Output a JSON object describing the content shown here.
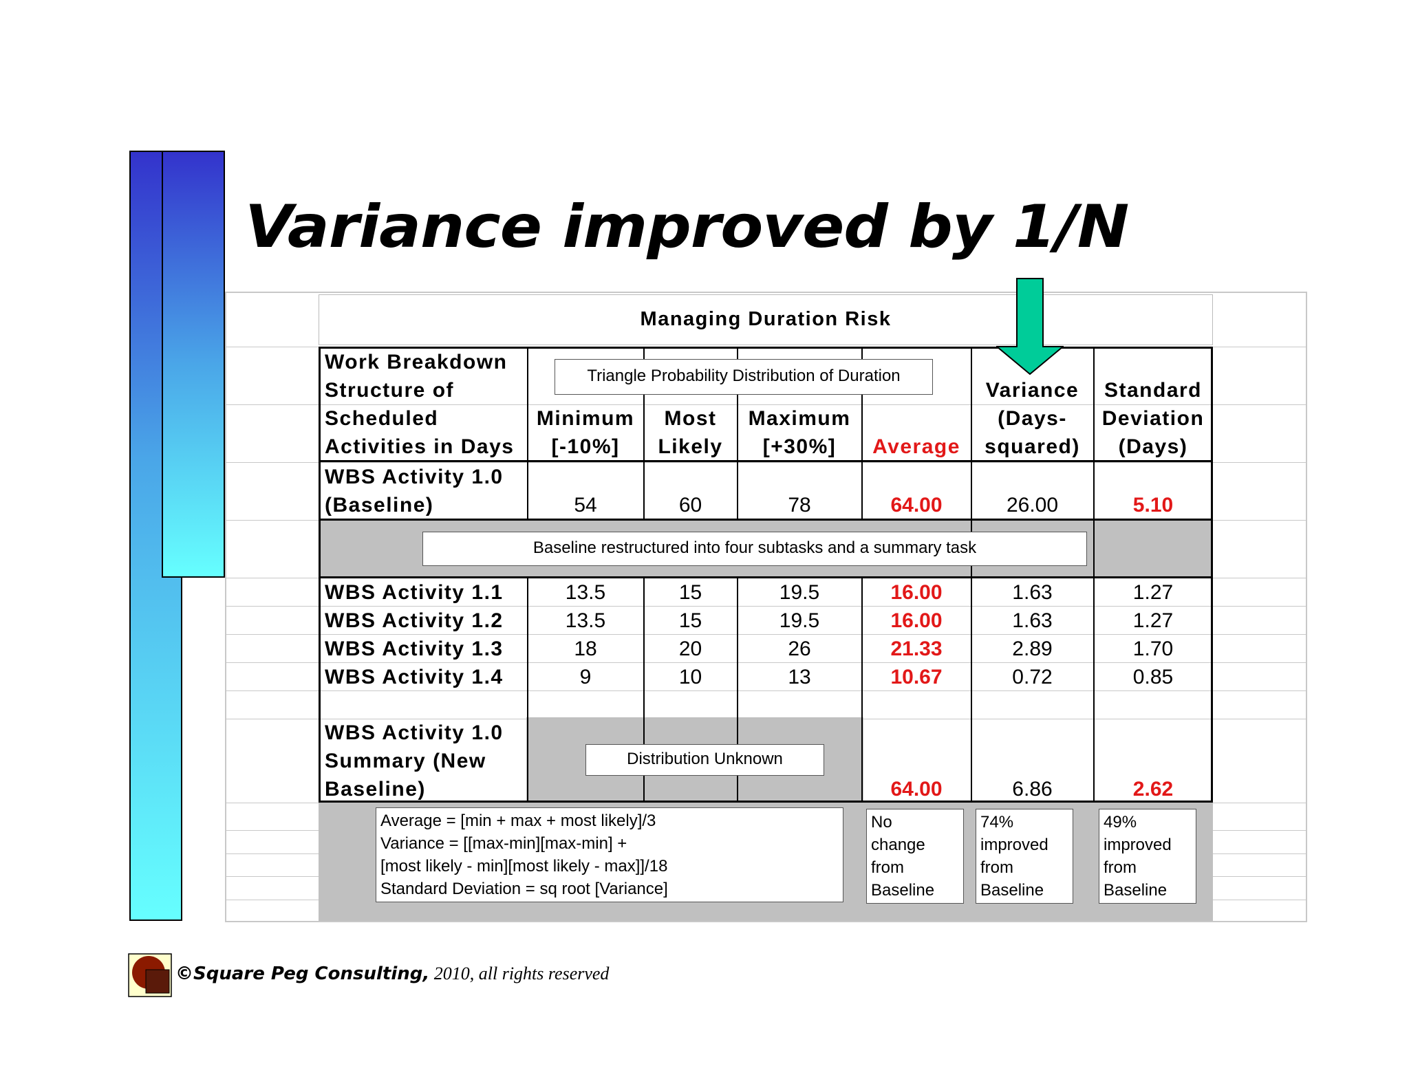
{
  "title": "Variance improved by 1/N",
  "table": {
    "caption": "Managing Duration Risk",
    "triangle_label": "Triangle Probability Distribution of Duration",
    "headers": {
      "wbs": [
        "Work Breakdown",
        "Structure of",
        "Scheduled",
        "Activities in Days"
      ],
      "min": [
        "Minimum",
        "[-10%]"
      ],
      "likely": [
        "Most",
        "Likely"
      ],
      "max": [
        "Maximum",
        "[+30%]"
      ],
      "avg": "Average",
      "var": [
        "Variance",
        "(Days-",
        "squared)"
      ],
      "sd": [
        "Standard",
        "Deviation",
        "(Days)"
      ]
    },
    "baseline": {
      "name": [
        "WBS Activity 1.0",
        "(Baseline)"
      ],
      "min": "54",
      "likely": "60",
      "max": "78",
      "avg": "64.00",
      "var": "26.00",
      "sd": "5.10"
    },
    "restructured_note": "Baseline restructured into four subtasks and a summary task",
    "rows": [
      {
        "name": "WBS Activity 1.1",
        "min": "13.5",
        "likely": "15",
        "max": "19.5",
        "avg": "16.00",
        "var": "1.63",
        "sd": "1.27"
      },
      {
        "name": "WBS Activity 1.2",
        "min": "13.5",
        "likely": "15",
        "max": "19.5",
        "avg": "16.00",
        "var": "1.63",
        "sd": "1.27"
      },
      {
        "name": "WBS Activity 1.3",
        "min": "18",
        "likely": "20",
        "max": "26",
        "avg": "21.33",
        "var": "2.89",
        "sd": "1.70"
      },
      {
        "name": "WBS Activity 1.4",
        "min": "9",
        "likely": "10",
        "max": "13",
        "avg": "10.67",
        "var": "0.72",
        "sd": "0.85"
      }
    ],
    "summary": {
      "name": [
        "WBS Activity 1.0",
        "Summary (New",
        "Baseline)"
      ],
      "distribution_note": "Distribution Unknown",
      "avg": "64.00",
      "var": "6.86",
      "sd": "2.62"
    },
    "formulas": [
      "Average = [min + max + most likely]/3",
      "Variance = [[max-min][max-min] +",
      "[most likely - min][most likely - max]]/18",
      "Standard Deviation = sq root [Variance]"
    ],
    "notes": {
      "avg": [
        "No",
        "change",
        "from",
        "Baseline"
      ],
      "var": [
        "74%",
        "improved",
        "from",
        "Baseline"
      ],
      "sd": [
        "49%",
        "improved",
        "from",
        "Baseline"
      ]
    }
  },
  "footer": {
    "brand": "©Square Peg Consulting,",
    "rest": " 2010, all rights reserved"
  },
  "colors": {
    "red_values": "#e21818",
    "arrow": "#00cc99",
    "bar_top": "#3333cc",
    "bar_bottom": "#66ffff",
    "gray_fill": "#c0c0c0"
  }
}
